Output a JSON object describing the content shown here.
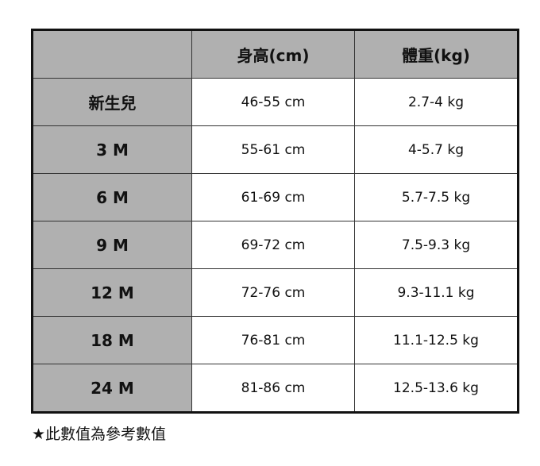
{
  "headers": [
    "",
    "身高(cm)",
    "體重(kg)"
  ],
  "rows": [
    {
      "label": "新生兒",
      "height": "46-55 cm",
      "weight": "2.7-4 kg"
    },
    {
      "label": "3 M",
      "height": "55-61 cm",
      "weight": "4-5.7 kg"
    },
    {
      "label": "6 M",
      "height": "61-69 cm",
      "weight": "5.7-7.5 kg"
    },
    {
      "label": "9 M",
      "height": "69-72 cm",
      "weight": "7.5-9.3 kg"
    },
    {
      "label": "12 M",
      "height": "72-76 cm",
      "weight": "9.3-11.1 kg"
    },
    {
      "label": "18 M",
      "height": "76-81 cm",
      "weight": "11.1-12.5 kg"
    },
    {
      "label": "24 M",
      "height": "81-86 cm",
      "weight": "12.5-13.6 kg"
    }
  ],
  "note": {
    "icon": "star-icon",
    "symbol": "★",
    "text": "此數值為參考數值"
  },
  "colors": {
    "header_bg": "#b0b0b0",
    "border": "#111111"
  }
}
